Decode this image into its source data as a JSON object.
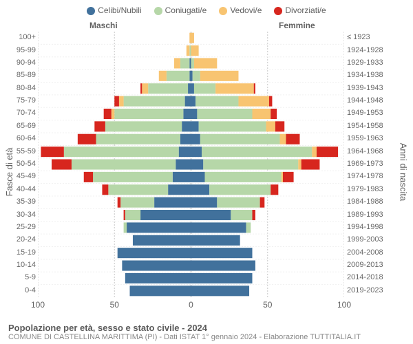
{
  "chart": {
    "type": "population-pyramid",
    "legend": [
      {
        "label": "Celibi/Nubili",
        "color": "#41719c"
      },
      {
        "label": "Coniugati/e",
        "color": "#b6d7a8"
      },
      {
        "label": "Vedovi/e",
        "color": "#f8c471"
      },
      {
        "label": "Divorziati/e",
        "color": "#d7261e"
      }
    ],
    "col_male": "Maschi",
    "col_female": "Femmine",
    "y_title_left": "Fasce di età",
    "y_title_right": "Anni di nascita",
    "x_max": 100,
    "x_ticks": [
      100,
      50,
      0,
      50,
      100
    ],
    "title": "Popolazione per età, sesso e stato civile - 2024",
    "subtitle": "COMUNE DI CASTELLINA MARITTIMA (PI) - Dati ISTAT 1° gennaio 2024 - Elaborazione TUTTITALIA.IT",
    "colors": {
      "grid": "#c8c8c8",
      "mid": "#a0a0a0",
      "rowsep": "#f0f0f0",
      "series": [
        "#41719c",
        "#b6d7a8",
        "#f8c471",
        "#d7261e"
      ]
    },
    "font_size": {
      "legend": 12,
      "axis": 11,
      "title": 13,
      "tick": 12
    },
    "age_groups": [
      "0-4",
      "5-9",
      "10-14",
      "15-19",
      "20-24",
      "25-29",
      "30-34",
      "35-39",
      "40-44",
      "45-49",
      "50-54",
      "55-59",
      "60-64",
      "65-69",
      "70-74",
      "75-79",
      "80-84",
      "85-89",
      "90-94",
      "95-99",
      "100+"
    ],
    "birth_years": [
      "2019-2023",
      "2014-2018",
      "2009-2013",
      "2004-2008",
      "1999-2003",
      "1994-1998",
      "1989-1993",
      "1984-1988",
      "1979-1983",
      "1974-1978",
      "1969-1973",
      "1964-1968",
      "1959-1963",
      "1954-1958",
      "1949-1953",
      "1944-1948",
      "1939-1943",
      "1934-1938",
      "1929-1933",
      "1924-1928",
      "≤ 1923"
    ],
    "male": [
      [
        40,
        0,
        0,
        0
      ],
      [
        43,
        0,
        0,
        0
      ],
      [
        45,
        0,
        0,
        0
      ],
      [
        48,
        0,
        0,
        0
      ],
      [
        38,
        0,
        0,
        0
      ],
      [
        42,
        2,
        0,
        0
      ],
      [
        33,
        10,
        0,
        1
      ],
      [
        24,
        22,
        0,
        2
      ],
      [
        15,
        39,
        0,
        4
      ],
      [
        12,
        52,
        0,
        6
      ],
      [
        10,
        68,
        0,
        13
      ],
      [
        8,
        75,
        0,
        15
      ],
      [
        7,
        55,
        0,
        12
      ],
      [
        6,
        50,
        0,
        7
      ],
      [
        5,
        45,
        2,
        5
      ],
      [
        4,
        40,
        3,
        3
      ],
      [
        2,
        26,
        4,
        1
      ],
      [
        1,
        15,
        5,
        0
      ],
      [
        1,
        6,
        4,
        0
      ],
      [
        0,
        1,
        2,
        0
      ],
      [
        0,
        0,
        1,
        0
      ]
    ],
    "female": [
      [
        38,
        0,
        0,
        0
      ],
      [
        40,
        0,
        0,
        0
      ],
      [
        42,
        0,
        0,
        0
      ],
      [
        40,
        0,
        0,
        0
      ],
      [
        32,
        0,
        0,
        0
      ],
      [
        36,
        3,
        0,
        0
      ],
      [
        26,
        14,
        0,
        2
      ],
      [
        17,
        28,
        0,
        3
      ],
      [
        12,
        40,
        0,
        5
      ],
      [
        9,
        50,
        1,
        7
      ],
      [
        8,
        62,
        2,
        12
      ],
      [
        7,
        72,
        3,
        14
      ],
      [
        6,
        52,
        4,
        9
      ],
      [
        5,
        44,
        6,
        6
      ],
      [
        4,
        36,
        12,
        4
      ],
      [
        3,
        28,
        20,
        2
      ],
      [
        2,
        14,
        25,
        1
      ],
      [
        1,
        5,
        25,
        0
      ],
      [
        0,
        2,
        15,
        0
      ],
      [
        0,
        0,
        5,
        0
      ],
      [
        0,
        0,
        2,
        0
      ]
    ]
  }
}
